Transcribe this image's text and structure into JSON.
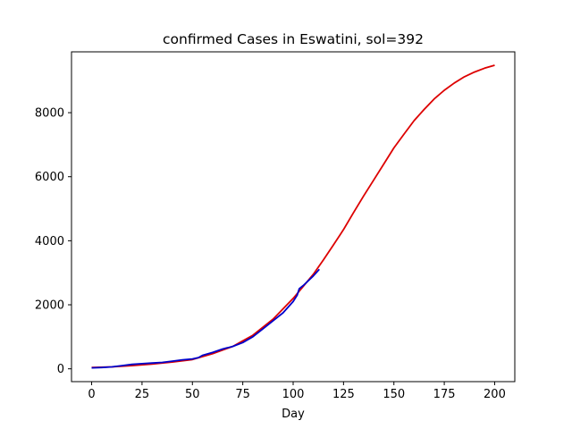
{
  "chart_data": {
    "type": "line",
    "title": "confirmed Cases in Eswatini, sol=392",
    "xlabel": "Day",
    "ylabel": "",
    "xlim": [
      -10,
      210
    ],
    "ylim": [
      -400,
      9900
    ],
    "xticks": [
      0,
      25,
      50,
      75,
      100,
      125,
      150,
      175,
      200
    ],
    "yticks": [
      0,
      2000,
      4000,
      6000,
      8000
    ],
    "grid": false,
    "legend": "none",
    "series": [
      {
        "color": "#dd0000",
        "x": [
          0,
          10,
          20,
          30,
          40,
          50,
          60,
          70,
          80,
          90,
          100,
          110,
          115,
          120,
          125,
          130,
          135,
          140,
          145,
          150,
          155,
          160,
          165,
          170,
          175,
          180,
          185,
          190,
          195,
          200
        ],
        "y": [
          40,
          60,
          100,
          150,
          210,
          290,
          470,
          700,
          1050,
          1550,
          2200,
          2950,
          3400,
          3870,
          4350,
          4880,
          5400,
          5900,
          6400,
          6900,
          7330,
          7750,
          8100,
          8430,
          8700,
          8930,
          9120,
          9270,
          9390,
          9480
        ]
      },
      {
        "color": "#0000cc",
        "x": [
          0,
          5,
          10,
          15,
          20,
          25,
          30,
          35,
          40,
          45,
          50,
          53,
          55,
          60,
          65,
          70,
          75,
          80,
          85,
          90,
          95,
          100,
          102,
          103,
          105,
          110,
          113
        ],
        "y": [
          30,
          40,
          60,
          100,
          140,
          160,
          180,
          200,
          240,
          280,
          310,
          350,
          420,
          510,
          620,
          700,
          820,
          1000,
          1250,
          1500,
          1750,
          2100,
          2300,
          2500,
          2600,
          2900,
          3110
        ]
      }
    ]
  }
}
